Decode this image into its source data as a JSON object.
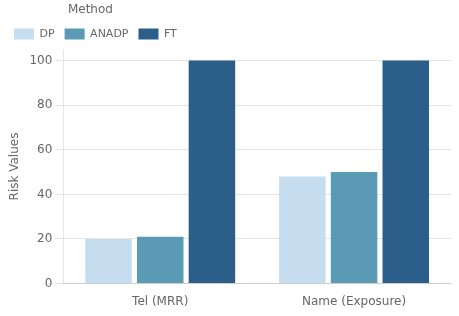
{
  "chart_data": {
    "type": "bar",
    "categories": [
      "Tel (MRR)",
      "Name (Exposure)"
    ],
    "series": [
      {
        "name": "DP",
        "color": "#c5ddef",
        "values": [
          20,
          48
        ]
      },
      {
        "name": "ANADP",
        "color": "#5b9ab5",
        "values": [
          21,
          50
        ]
      },
      {
        "name": "FT",
        "color": "#2b5f8a",
        "values": [
          100,
          100
        ]
      }
    ],
    "ylabel": "Risk Values",
    "ylim": [
      0,
      105
    ],
    "yticks": [
      0,
      20,
      40,
      60,
      80,
      100
    ],
    "grid": true,
    "legend": "upper left",
    "legend_title": "Method"
  }
}
